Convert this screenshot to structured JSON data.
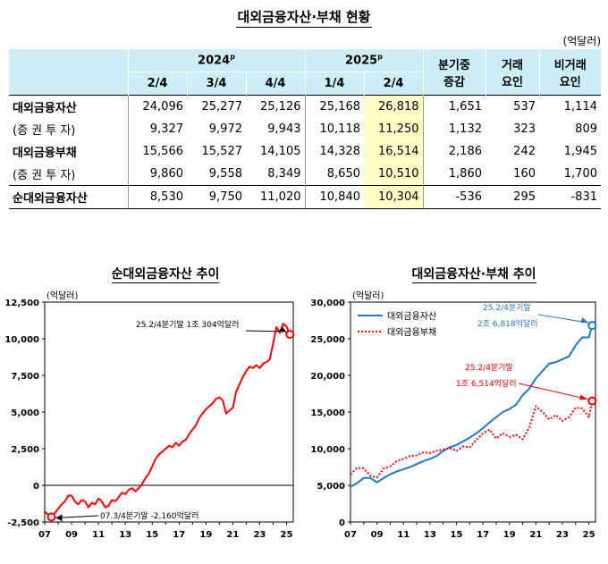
{
  "title": "대외금융자산·부채 현황",
  "unit": "(억달러)",
  "table": {
    "year_2024": "2024",
    "year_2025": "2025",
    "prelim": "p",
    "quarters": [
      "2/4",
      "3/4",
      "4/4",
      "1/4",
      "2/4"
    ],
    "change_line1": "분기중",
    "change_line2": "증감",
    "trade_line1": "거래",
    "trade_line2": "요인",
    "nontrade_line1": "비거래",
    "nontrade_line2": "요인",
    "rows": [
      {
        "label": "대외금융자산",
        "values": [
          "24,096",
          "25,277",
          "25,126",
          "25,168",
          "26,818"
        ],
        "change": "1,651",
        "trade": "537",
        "nontrade": "1,114"
      },
      {
        "label": "(증 권 투 자)",
        "values": [
          "9,327",
          "9,972",
          "9,943",
          "10,118",
          "11,250"
        ],
        "change": "1,132",
        "trade": "323",
        "nontrade": "809"
      },
      {
        "label": "대외금융부채",
        "values": [
          "15,566",
          "15,527",
          "14,105",
          "14,328",
          "16,514"
        ],
        "change": "2,186",
        "trade": "242",
        "nontrade": "1,945"
      },
      {
        "label": "(증 권 투 자)",
        "values": [
          "9,860",
          "9,558",
          "8,349",
          "8,650",
          "10,510"
        ],
        "change": "1,860",
        "trade": "160",
        "nontrade": "1,700"
      },
      {
        "label": "순대외금융자산",
        "values": [
          "8,530",
          "9,750",
          "11,020",
          "10,840",
          "10,304"
        ],
        "change": "-536",
        "trade": "295",
        "nontrade": "-831"
      }
    ]
  },
  "chart_data": [
    {
      "type": "line",
      "title": "순대외금융자산 추이",
      "ylabel": "(억달러)",
      "ylim": [
        -2500,
        12500
      ],
      "yticks": [
        "12,500",
        "10,000",
        "7,500",
        "5,000",
        "2,500",
        "0",
        "-2,500"
      ],
      "xticks": [
        "07",
        "09",
        "11",
        "13",
        "15",
        "17",
        "19",
        "21",
        "23",
        "25"
      ],
      "xlim": [
        2007.0,
        2025.5
      ],
      "series": [
        {
          "color": "#ff0000",
          "x": [
            2007.0,
            2007.25,
            2007.5,
            2007.75,
            2008.0,
            2008.25,
            2008.5,
            2008.75,
            2009.0,
            2009.25,
            2009.5,
            2009.75,
            2010.0,
            2010.25,
            2010.5,
            2010.75,
            2011.0,
            2011.25,
            2011.5,
            2011.75,
            2012.0,
            2012.25,
            2012.5,
            2012.75,
            2013.0,
            2013.25,
            2013.5,
            2013.75,
            2014.0,
            2014.25,
            2014.5,
            2014.75,
            2015.0,
            2015.25,
            2015.5,
            2015.75,
            2016.0,
            2016.25,
            2016.5,
            2016.75,
            2017.0,
            2017.25,
            2017.5,
            2017.75,
            2018.0,
            2018.25,
            2018.5,
            2018.75,
            2019.0,
            2019.25,
            2019.5,
            2019.75,
            2020.0,
            2020.25,
            2020.5,
            2020.75,
            2021.0,
            2021.25,
            2021.5,
            2021.75,
            2022.0,
            2022.25,
            2022.5,
            2022.75,
            2023.0,
            2023.25,
            2023.5,
            2023.75,
            2024.0,
            2024.25,
            2024.5,
            2024.75,
            2025.0,
            2025.25
          ],
          "y": [
            -1800,
            -2000,
            -2160,
            -1900,
            -1600,
            -1300,
            -1100,
            -700,
            -700,
            -1100,
            -1300,
            -1000,
            -1100,
            -1500,
            -1200,
            -1300,
            -900,
            -1100,
            -1500,
            -1400,
            -1000,
            -1100,
            -800,
            -500,
            -600,
            -300,
            -200,
            -400,
            -200,
            100,
            500,
            800,
            1300,
            1800,
            2100,
            2300,
            2500,
            2700,
            2600,
            2900,
            2700,
            3000,
            3100,
            3500,
            3800,
            4100,
            4600,
            4900,
            5200,
            5400,
            5600,
            5900,
            6000,
            5800,
            4900,
            5100,
            5300,
            6400,
            6900,
            7400,
            7800,
            8100,
            8000,
            8200,
            8000,
            8300,
            8400,
            8600,
            9700,
            10800,
            10400,
            11020,
            10840,
            10304
          ]
        }
      ],
      "annotations": [
        "25.2/4분기말 1조 304억달러",
        "07.3/4분기말 -2,160억달러"
      ]
    },
    {
      "type": "line",
      "title": "대외금융자산·부채 추이",
      "ylabel": "(억달러)",
      "ylim": [
        0,
        30000
      ],
      "yticks": [
        "30,000",
        "25,000",
        "20,000",
        "15,000",
        "10,000",
        "5,000",
        "0"
      ],
      "xticks": [
        "07",
        "09",
        "11",
        "13",
        "15",
        "17",
        "19",
        "21",
        "23",
        "25"
      ],
      "xlim": [
        2007.0,
        2025.5
      ],
      "series": [
        {
          "name": "대외금융자산",
          "color": "#1f78c8",
          "style": "solid",
          "x": [
            2007.0,
            2007.5,
            2008.0,
            2008.5,
            2009.0,
            2009.5,
            2010.0,
            2010.5,
            2011.0,
            2011.5,
            2012.0,
            2012.5,
            2013.0,
            2013.5,
            2014.0,
            2014.5,
            2015.0,
            2015.5,
            2016.0,
            2016.5,
            2017.0,
            2017.5,
            2018.0,
            2018.5,
            2019.0,
            2019.5,
            2020.0,
            2020.5,
            2021.0,
            2021.5,
            2022.0,
            2022.5,
            2023.0,
            2023.5,
            2024.0,
            2024.5,
            2025.0,
            2025.25
          ],
          "y": [
            4800,
            5300,
            6000,
            6000,
            5400,
            6000,
            6500,
            6900,
            7200,
            7500,
            7900,
            8300,
            8600,
            9000,
            9700,
            10200,
            10500,
            11000,
            11500,
            12100,
            12800,
            13600,
            14300,
            15000,
            15400,
            16000,
            17300,
            18200,
            19600,
            20600,
            21600,
            21800,
            22200,
            22600,
            24100,
            25200,
            25168,
            26818
          ]
        },
        {
          "name": "대외금융부채",
          "color": "#ff0000",
          "style": "dotted",
          "x": [
            2007.0,
            2007.5,
            2008.0,
            2008.5,
            2009.0,
            2009.5,
            2010.0,
            2010.5,
            2011.0,
            2011.5,
            2012.0,
            2012.5,
            2013.0,
            2013.5,
            2014.0,
            2014.5,
            2015.0,
            2015.5,
            2016.0,
            2016.5,
            2017.0,
            2017.5,
            2018.0,
            2018.5,
            2019.0,
            2019.5,
            2020.0,
            2020.5,
            2021.0,
            2021.5,
            2022.0,
            2022.5,
            2023.0,
            2023.5,
            2024.0,
            2024.5,
            2025.0,
            2025.25
          ],
          "y": [
            6500,
            7400,
            7300,
            6300,
            6100,
            7300,
            7600,
            8300,
            8600,
            9000,
            9100,
            9500,
            9400,
            9700,
            9900,
            10100,
            9700,
            10300,
            10200,
            11200,
            12100,
            12600,
            11400,
            12100,
            11600,
            11900,
            11300,
            12900,
            15800,
            15000,
            14000,
            14600,
            13800,
            14300,
            15600,
            15500,
            14328,
            16514
          ]
        }
      ],
      "annotations": [
        "25.2/4분기말 2조 6,818억달러",
        "25.2/4분기말 1조 6,514억달러"
      ]
    }
  ]
}
